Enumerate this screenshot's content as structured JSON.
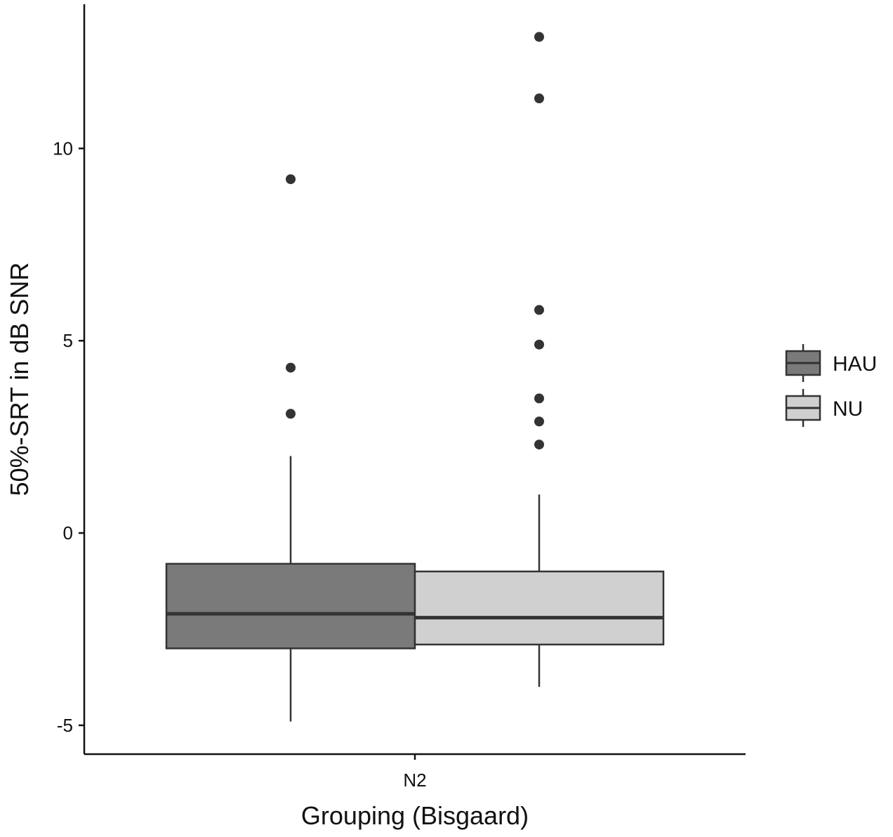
{
  "chart_data": {
    "type": "box",
    "xlabel": "Grouping (Bisgaard)",
    "ylabel": "50%-SRT in dB SNR",
    "categories": [
      "N2"
    ],
    "ylim": [
      -5.75,
      13.75
    ],
    "yticks": [
      -5,
      0,
      5,
      10
    ],
    "ytick_labels": [
      "-5",
      "0",
      "5",
      "10"
    ],
    "grid": false,
    "legend_position": "right",
    "series": [
      {
        "name": "HAU",
        "color": "#7a7a7a",
        "whisker_low": -4.9,
        "q1": -3.0,
        "median": -2.1,
        "q3": -0.8,
        "whisker_high": 2.0,
        "outliers": [
          3.1,
          4.3,
          9.2
        ]
      },
      {
        "name": "NU",
        "color": "#d0d0d0",
        "whisker_low": -4.0,
        "q1": -2.9,
        "median": -2.2,
        "q3": -1.0,
        "whisker_high": 1.0,
        "outliers": [
          2.3,
          2.9,
          3.5,
          4.9,
          5.8,
          11.3,
          12.9
        ]
      }
    ]
  }
}
